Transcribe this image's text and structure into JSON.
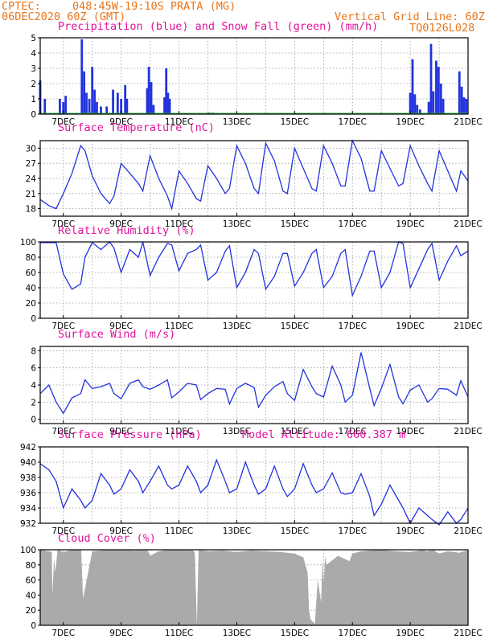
{
  "header": {
    "source": "CPTEC:",
    "location": "048:45W-19:10S  PRATA (MG)",
    "run": "06DEC2020 60Z (GMT)",
    "grid_note": "Vertical Grid Line: 60Z",
    "product": "TQ0126L028"
  },
  "colors": {
    "header": "#e8751a",
    "title": "#e0139c",
    "series": "#2233dd",
    "snow": "#22aa33",
    "cloud": "#aaaaaa"
  },
  "x_ticks": [
    "7DEC",
    "9DEC",
    "11DEC",
    "13DEC",
    "15DEC",
    "17DEC",
    "19DEC",
    "21DEC"
  ],
  "chart_data": [
    {
      "id": "precip",
      "type": "bar",
      "title": "Precipitation (blue) and Snow Fall (green) (mm/h)",
      "ylim": [
        0,
        5
      ],
      "yticks": [
        "0",
        "1",
        "2",
        "3",
        "4",
        "5"
      ],
      "x_range_days": [
        6.2,
        21
      ],
      "grid": true,
      "series": [
        {
          "name": "Precipitation",
          "x": [
            6.2,
            6.36,
            6.88,
            7.0,
            7.08,
            7.64,
            7.72,
            7.8,
            7.9,
            8.0,
            8.08,
            8.16,
            8.3,
            8.5,
            8.72,
            8.88,
            9.0,
            9.14,
            9.2,
            9.9,
            9.96,
            10.04,
            10.12,
            10.5,
            10.56,
            10.62,
            10.68,
            11.1,
            12.04,
            12.16,
            13.1,
            19.0,
            19.08,
            19.16,
            19.24,
            19.34,
            19.64,
            19.72,
            19.8,
            19.9,
            19.98,
            20.06,
            20.14,
            20.7,
            20.78,
            20.86,
            20.94
          ],
          "values": [
            2.2,
            1.0,
            1.0,
            0.8,
            1.2,
            4.9,
            2.8,
            1.4,
            1.0,
            3.1,
            1.6,
            0.8,
            0.5,
            0.5,
            1.6,
            1.4,
            1.0,
            1.9,
            1.0,
            1.7,
            3.1,
            2.1,
            0.6,
            1.1,
            3.0,
            1.4,
            1.0,
            0.05,
            0.1,
            0.1,
            0.05,
            1.4,
            3.6,
            1.3,
            0.6,
            0.3,
            0.8,
            4.6,
            1.5,
            3.5,
            3.1,
            2.0,
            1.0,
            2.8,
            1.8,
            1.1,
            1.0
          ]
        },
        {
          "name": "Snow Fall",
          "x": [
            6.2,
            21
          ],
          "values": [
            0,
            0
          ]
        }
      ]
    },
    {
      "id": "temperature",
      "type": "line",
      "title": "Surface Temperature (nC)",
      "ylim": [
        16.5,
        31.5
      ],
      "yticks": [
        "18",
        "21",
        "24",
        "27",
        "30"
      ],
      "grid": true,
      "series": [
        {
          "name": "Surface Temperature",
          "x": [
            6.2,
            6.5,
            6.75,
            7.0,
            7.3,
            7.6,
            7.75,
            8.0,
            8.3,
            8.6,
            8.75,
            9.0,
            9.3,
            9.6,
            9.75,
            10.0,
            10.3,
            10.6,
            10.75,
            11.0,
            11.3,
            11.6,
            11.75,
            12.0,
            12.3,
            12.6,
            12.75,
            13.0,
            13.3,
            13.6,
            13.75,
            14.0,
            14.3,
            14.6,
            14.75,
            15.0,
            15.3,
            15.6,
            15.75,
            16.0,
            16.3,
            16.6,
            16.75,
            17.0,
            17.3,
            17.6,
            17.75,
            18.0,
            18.3,
            18.6,
            18.75,
            19.0,
            19.3,
            19.6,
            19.75,
            20.0,
            20.3,
            20.6,
            20.75,
            21.0
          ],
          "values": [
            19.8,
            18.6,
            18.0,
            21.0,
            25.0,
            30.5,
            29.5,
            24.5,
            21.0,
            19.0,
            20.5,
            27.0,
            25.0,
            23.0,
            21.5,
            28.5,
            24.0,
            20.5,
            18.0,
            25.5,
            23.0,
            20.0,
            19.5,
            26.5,
            24.0,
            21.0,
            22.0,
            30.5,
            27.0,
            22.0,
            21.0,
            31.0,
            27.5,
            21.5,
            21.0,
            30.0,
            26.0,
            22.0,
            21.5,
            30.5,
            27.0,
            22.5,
            22.5,
            31.5,
            28.0,
            21.5,
            21.5,
            29.5,
            26.0,
            22.5,
            23.0,
            30.5,
            26.5,
            23.0,
            21.5,
            29.5,
            25.5,
            21.5,
            25.5,
            23.5
          ]
        }
      ]
    },
    {
      "id": "humidity",
      "type": "line",
      "title": "Relative Humidity (%)",
      "ylim": [
        0,
        100
      ],
      "yticks": [
        "0",
        "20",
        "40",
        "60",
        "80",
        "100"
      ],
      "grid": true,
      "series": [
        {
          "name": "Relative Humidity",
          "x": [
            6.2,
            6.5,
            6.75,
            7.0,
            7.3,
            7.6,
            7.75,
            8.0,
            8.3,
            8.6,
            8.75,
            9.0,
            9.3,
            9.6,
            9.75,
            10.0,
            10.3,
            10.6,
            10.75,
            11.0,
            11.3,
            11.6,
            11.75,
            12.0,
            12.3,
            12.6,
            12.75,
            13.0,
            13.3,
            13.6,
            13.75,
            14.0,
            14.3,
            14.6,
            14.75,
            15.0,
            15.3,
            15.6,
            15.75,
            16.0,
            16.3,
            16.6,
            16.75,
            17.0,
            17.3,
            17.6,
            17.75,
            18.0,
            18.3,
            18.6,
            18.75,
            19.0,
            19.3,
            19.6,
            19.75,
            20.0,
            20.3,
            20.6,
            20.75,
            21.0
          ],
          "values": [
            99,
            99,
            99,
            58,
            38,
            45,
            80,
            99,
            90,
            100,
            92,
            60,
            90,
            80,
            100,
            56,
            80,
            98,
            96,
            62,
            85,
            90,
            96,
            50,
            60,
            88,
            95,
            40,
            60,
            90,
            85,
            38,
            55,
            85,
            85,
            42,
            60,
            85,
            90,
            40,
            55,
            85,
            90,
            30,
            55,
            88,
            88,
            40,
            60,
            100,
            98,
            40,
            65,
            90,
            98,
            50,
            75,
            95,
            82,
            88
          ]
        }
      ]
    },
    {
      "id": "wind",
      "type": "line",
      "title": "Surface Wind (m/s)",
      "ylim": [
        -0.5,
        8.5
      ],
      "yticks": [
        "0",
        "2",
        "4",
        "6",
        "8"
      ],
      "grid": true,
      "series": [
        {
          "name": "Surface Wind",
          "x": [
            6.2,
            6.5,
            6.75,
            7.0,
            7.3,
            7.6,
            7.75,
            8.0,
            8.3,
            8.6,
            8.75,
            9.0,
            9.3,
            9.6,
            9.75,
            10.0,
            10.3,
            10.6,
            10.75,
            11.0,
            11.3,
            11.6,
            11.75,
            12.0,
            12.3,
            12.6,
            12.75,
            13.0,
            13.3,
            13.6,
            13.75,
            14.0,
            14.3,
            14.6,
            14.75,
            15.0,
            15.3,
            15.6,
            15.75,
            16.0,
            16.3,
            16.6,
            16.75,
            17.0,
            17.3,
            17.6,
            17.75,
            18.0,
            18.3,
            18.6,
            18.75,
            19.0,
            19.3,
            19.6,
            19.75,
            20.0,
            20.3,
            20.6,
            20.75,
            21.0
          ],
          "values": [
            3.0,
            4.0,
            2.0,
            0.7,
            2.5,
            3.0,
            4.6,
            3.6,
            3.8,
            4.2,
            3.0,
            2.4,
            4.2,
            4.6,
            3.8,
            3.5,
            4.0,
            4.6,
            2.5,
            3.2,
            4.2,
            4.0,
            2.3,
            3.0,
            3.6,
            3.5,
            1.8,
            3.6,
            4.2,
            3.7,
            1.4,
            2.8,
            3.8,
            4.4,
            3.0,
            2.2,
            5.8,
            3.8,
            3.0,
            2.6,
            6.2,
            4.0,
            2.0,
            2.8,
            7.8,
            3.6,
            1.6,
            3.6,
            6.4,
            2.6,
            1.8,
            3.4,
            4.0,
            2.0,
            2.4,
            3.6,
            3.5,
            2.8,
            4.5,
            2.6
          ]
        }
      ]
    },
    {
      "id": "pressure",
      "type": "line",
      "title": "Surface Pressure (hPa)",
      "annotation": "Model Altitude: 660.387 m",
      "ylim": [
        932,
        942
      ],
      "yticks": [
        "932",
        "934",
        "936",
        "938",
        "940",
        "942"
      ],
      "grid": true,
      "series": [
        {
          "name": "Surface Pressure",
          "x": [
            6.2,
            6.5,
            6.75,
            7.0,
            7.3,
            7.6,
            7.75,
            8.0,
            8.3,
            8.6,
            8.75,
            9.0,
            9.3,
            9.6,
            9.75,
            10.0,
            10.3,
            10.6,
            10.75,
            11.0,
            11.3,
            11.6,
            11.75,
            12.0,
            12.3,
            12.6,
            12.75,
            13.0,
            13.3,
            13.6,
            13.75,
            14.0,
            14.3,
            14.6,
            14.75,
            15.0,
            15.3,
            15.6,
            15.75,
            16.0,
            16.3,
            16.6,
            16.75,
            17.0,
            17.3,
            17.6,
            17.75,
            18.0,
            18.3,
            18.6,
            18.75,
            19.0,
            19.3,
            19.6,
            19.75,
            20.0,
            20.3,
            20.6,
            20.75,
            21.0
          ],
          "values": [
            939.8,
            939.0,
            937.5,
            934.0,
            936.5,
            935.0,
            934.0,
            935.0,
            938.5,
            937.0,
            935.8,
            936.5,
            939.0,
            937.5,
            936.0,
            937.5,
            939.5,
            937.0,
            936.5,
            937.0,
            939.5,
            937.5,
            936.0,
            937.0,
            940.3,
            937.5,
            936.0,
            936.5,
            940.0,
            937.0,
            935.8,
            936.5,
            939.5,
            936.5,
            935.5,
            936.5,
            939.8,
            937.0,
            936.0,
            936.5,
            938.6,
            936.0,
            935.8,
            936.0,
            938.5,
            935.5,
            933.0,
            934.5,
            937.0,
            935.0,
            934.0,
            932.0,
            934.0,
            933.0,
            932.5,
            931.8,
            933.5,
            932.0,
            932.5,
            934.0
          ]
        }
      ]
    },
    {
      "id": "cloud",
      "type": "area",
      "title": "Cloud Cover (%)",
      "ylim": [
        0,
        100
      ],
      "yticks": [
        "0",
        "20",
        "40",
        "60",
        "80",
        "100"
      ],
      "grid": true,
      "series": [
        {
          "name": "Cloud Cover",
          "x": [
            6.2,
            6.6,
            6.62,
            6.68,
            6.72,
            6.8,
            7.0,
            7.3,
            7.62,
            7.68,
            8.0,
            8.5,
            9.0,
            9.5,
            9.9,
            10.0,
            10.3,
            10.6,
            11.0,
            11.5,
            11.55,
            11.62,
            11.68,
            12.0,
            12.5,
            13.0,
            13.5,
            14.0,
            14.5,
            15.0,
            15.3,
            15.45,
            15.5,
            15.55,
            15.7,
            15.8,
            15.92,
            15.96,
            16.0,
            16.06,
            16.1,
            16.5,
            16.9,
            17.0,
            17.3,
            17.6,
            18.0,
            18.5,
            19.0,
            19.3,
            19.45,
            19.55,
            19.7,
            19.8,
            19.9,
            20.0,
            20.3,
            20.5,
            20.7,
            20.85,
            21.0
          ],
          "values": [
            100,
            97,
            40,
            88,
            70,
            100,
            97,
            100,
            100,
            35,
            98,
            100,
            100,
            99,
            100,
            92,
            98,
            100,
            100,
            99,
            95,
            0,
            100,
            98,
            99,
            97,
            99,
            98,
            97,
            95,
            90,
            70,
            20,
            8,
            2,
            60,
            30,
            88,
            55,
            92,
            80,
            92,
            85,
            95,
            98,
            99,
            100,
            98,
            97,
            99,
            100,
            98,
            99,
            100,
            97,
            95,
            98,
            97,
            96,
            98,
            99
          ]
        }
      ]
    }
  ]
}
